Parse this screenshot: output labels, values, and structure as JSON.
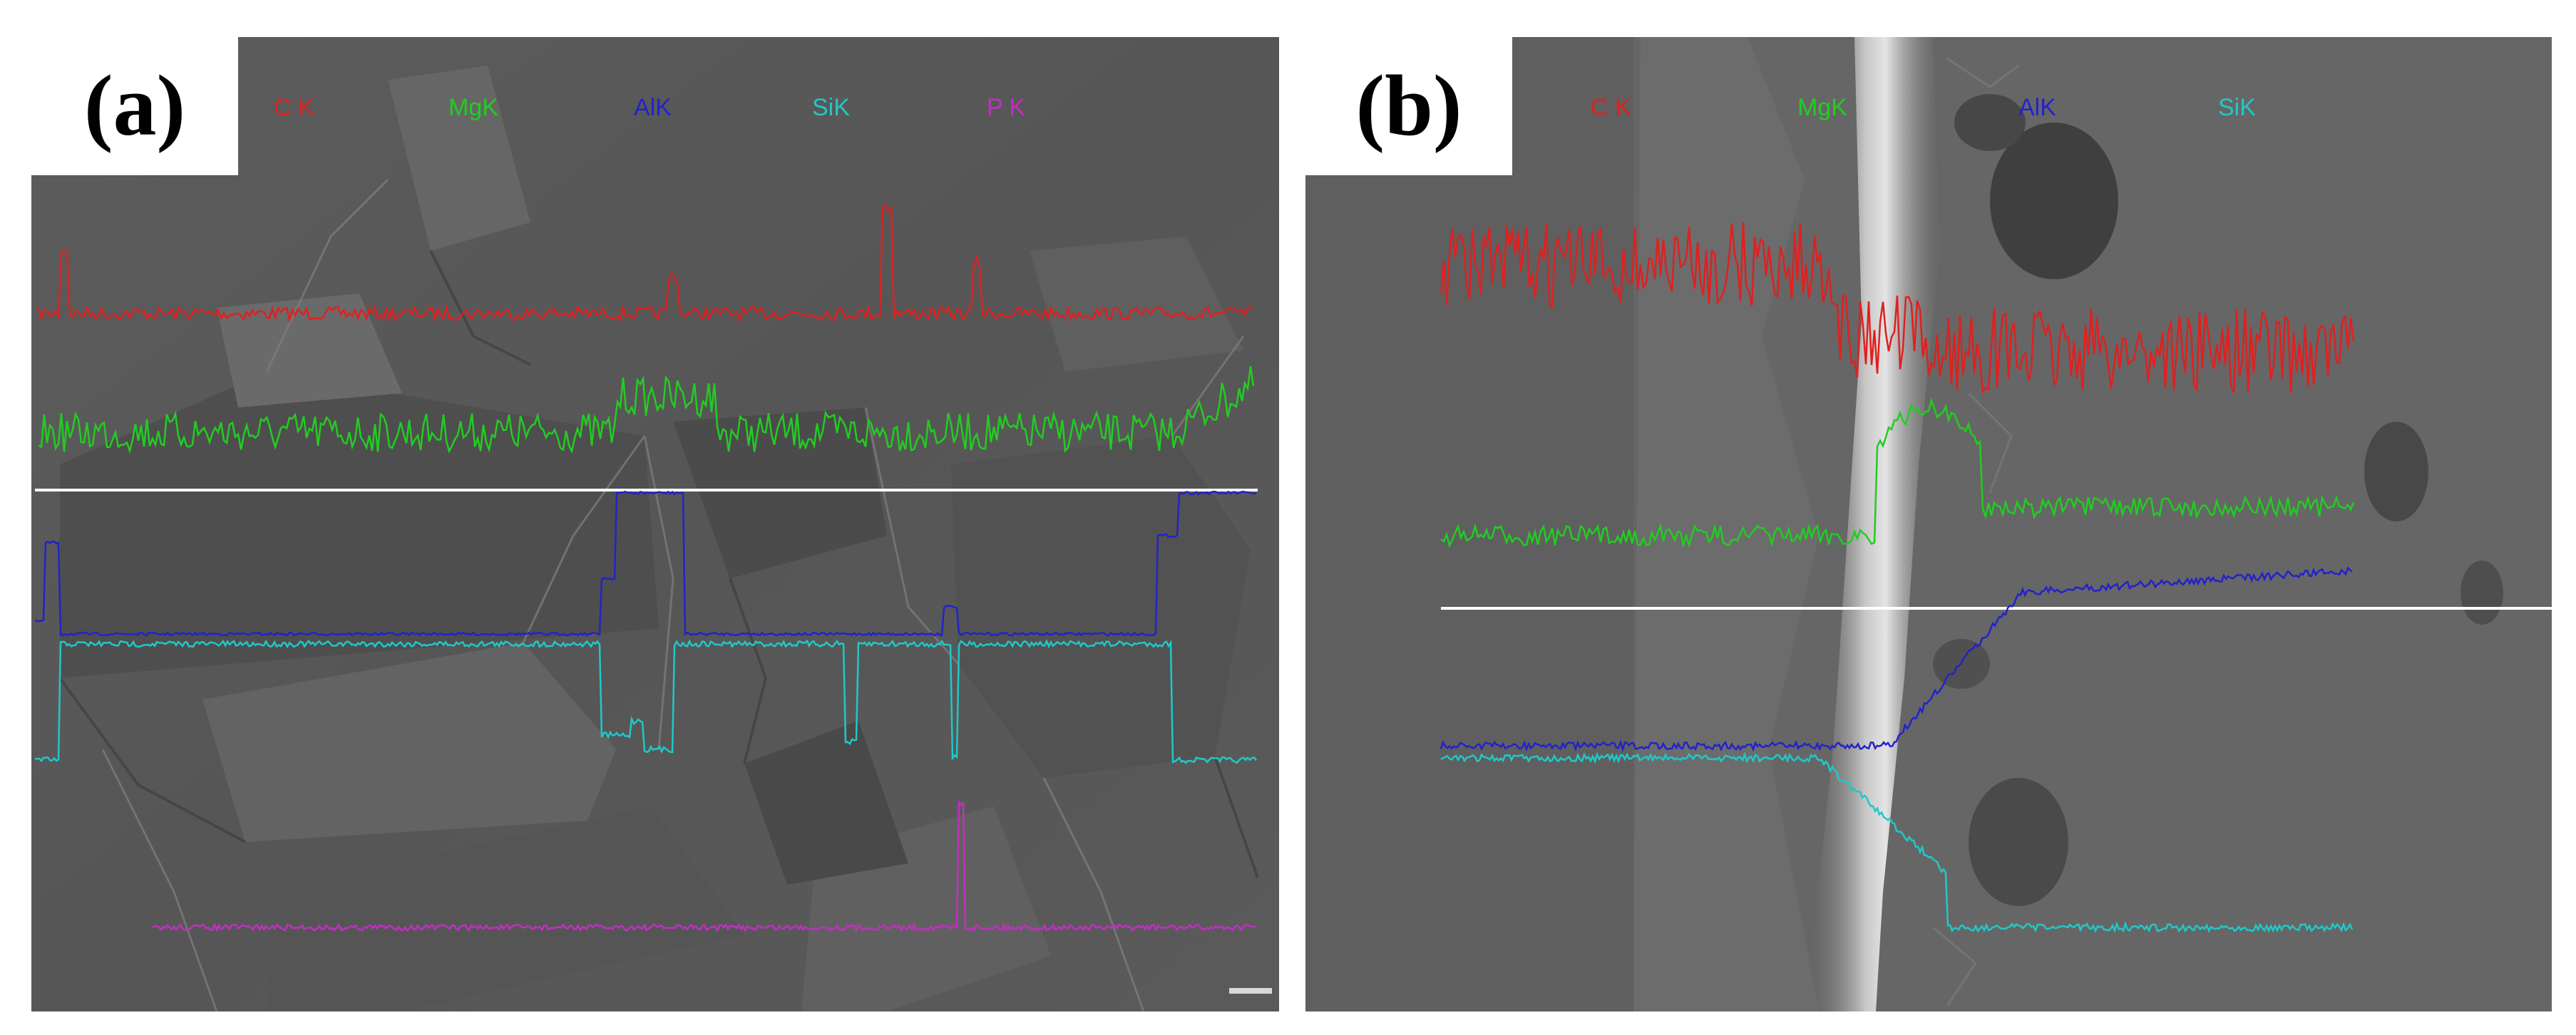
{
  "panels": [
    {
      "id": "a",
      "label": "(a)",
      "legend": [
        {
          "text": "C K",
          "color": "#e02020"
        },
        {
          "text": "MgK",
          "color": "#22cc22"
        },
        {
          "text": "AlK",
          "color": "#2222cc"
        },
        {
          "text": "SiK",
          "color": "#20c8c8"
        },
        {
          "text": "P K",
          "color": "#c030c0"
        }
      ],
      "scan_line_icon": "white-scan-line",
      "background": "sem-micrograph-fractured-grains"
    },
    {
      "id": "b",
      "label": "(b)",
      "legend": [
        {
          "text": "C K",
          "color": "#e02020"
        },
        {
          "text": "MgK",
          "color": "#22cc22"
        },
        {
          "text": "AlK",
          "color": "#2222cc"
        },
        {
          "text": "SiK",
          "color": "#20c8c8"
        }
      ],
      "scan_line_icon": "white-scan-line",
      "background": "sem-micrograph-interface"
    }
  ]
}
